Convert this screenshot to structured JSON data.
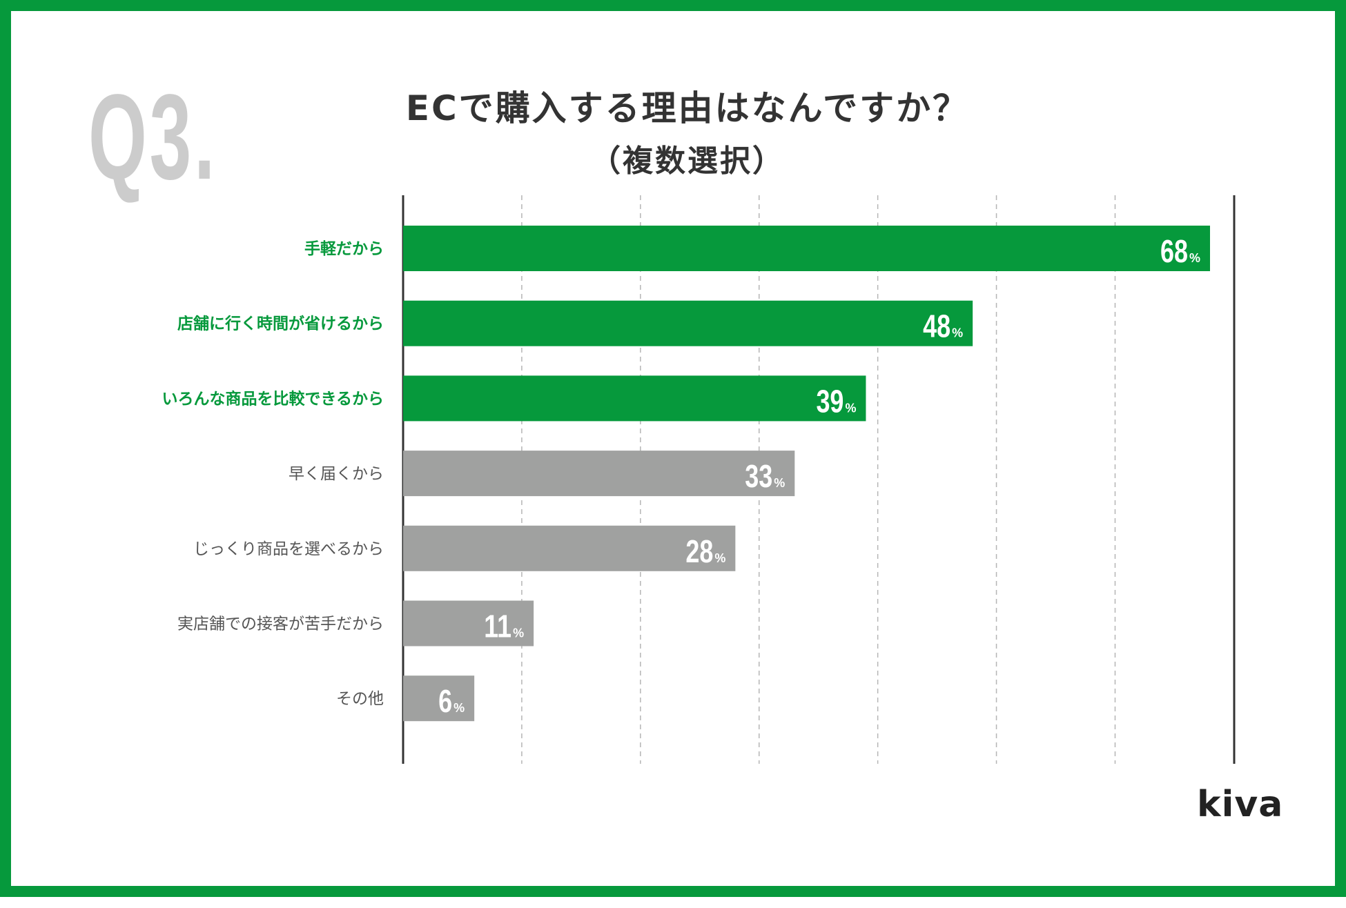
{
  "question_label": "Q3.",
  "title": "ECで購入する理由はなんですか？",
  "subtitle": "（複数選択）",
  "brand": "kiva",
  "colors": {
    "frame": "#06993c",
    "highlight": "#06993c",
    "normal": "#a0a1a0",
    "question_label": "#cccccc",
    "axis": "#333333",
    "grid": "#b5b5b5"
  },
  "chart_data": {
    "type": "bar",
    "orientation": "horizontal",
    "categories": [
      "手軽だから",
      "店舗に行く時間が省けるから",
      "いろんな商品を比較できるから",
      "早く届くから",
      "じっくり商品を選べるから",
      "実店舗での接客が苦手だから",
      "その他"
    ],
    "values": [
      68,
      48,
      39,
      33,
      28,
      11,
      6
    ],
    "value_labels": [
      "68",
      "48",
      "39",
      "33",
      "28",
      "11",
      "6"
    ],
    "unit": "%",
    "highlighted": [
      true,
      true,
      true,
      false,
      false,
      false,
      false
    ],
    "xlim": [
      0,
      70
    ],
    "gridlines": [
      10,
      20,
      30,
      40,
      50,
      60
    ],
    "title": "ECで購入する理由はなんですか？",
    "subtitle": "（複数選択）"
  }
}
